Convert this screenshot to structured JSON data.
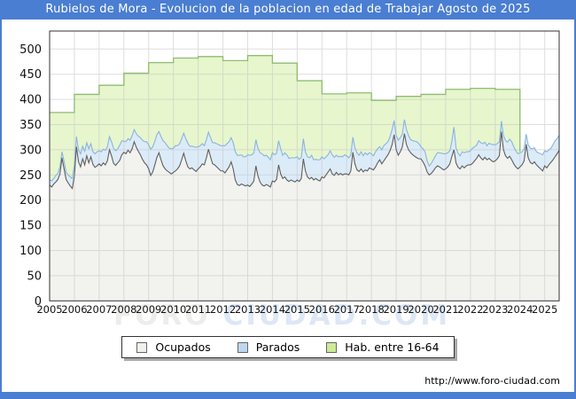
{
  "window": {
    "title": "Rubielos de Mora - Evolucion de la poblacion en edad de Trabajar Agosto de 2025"
  },
  "theme": {
    "accent_blue": "#4a7ed2",
    "grid_color": "#c9c9c9",
    "plot_border": "#333333",
    "tick_text": "#111111"
  },
  "watermark": {
    "part1": "FORO",
    "part2": "CIUDAD.COM"
  },
  "footer": {
    "url": "http://www.foro-ciudad.com"
  },
  "legend": {
    "items": [
      {
        "label": "Ocupados",
        "swatch": "#f0f0ec"
      },
      {
        "label": "Parados",
        "swatch": "#bdd7f0"
      },
      {
        "label": "Hab. entre 16-64",
        "swatch": "#cdeb96"
      }
    ]
  },
  "chart_data": {
    "type": "area",
    "title": "Rubielos de Mora - Evolucion de la poblacion en edad de Trabajar Agosto de 2025",
    "xlabel": "",
    "ylabel": "",
    "x_ticks": [
      "2005",
      "2006",
      "2007",
      "2008",
      "2009",
      "2010",
      "2011",
      "2012",
      "2013",
      "2014",
      "2015",
      "2016",
      "2017",
      "2018",
      "2019",
      "2020",
      "2021",
      "2022",
      "2023",
      "2024",
      "2025"
    ],
    "y_ticks": [
      0,
      50,
      100,
      150,
      200,
      250,
      300,
      350,
      400,
      450,
      500
    ],
    "ylim": [
      0,
      535
    ],
    "grid": true,
    "legend_position": "bottom",
    "x_start": "2005-01",
    "x_end": "2025-08",
    "series": [
      {
        "name": "Hab. entre 16-64",
        "kind": "yearly_step",
        "first_year": 2005,
        "note": "padron values step once per year; series ends at start of 2024",
        "values": [
          374,
          410,
          428,
          452,
          473,
          482,
          485,
          477,
          487,
          472,
          437,
          411,
          413,
          398,
          406,
          410,
          420,
          422,
          420
        ],
        "fill": "#e7f6cd",
        "stroke": "#8fbc72"
      },
      {
        "name": "Parados",
        "kind": "monthly_stacked_on_ocupados",
        "note": "monthly Jan2005-Aug2025; plotted stacked on top of Ocupados",
        "values": [
          10,
          12,
          11,
          13,
          12,
          14,
          12,
          15,
          14,
          16,
          18,
          20,
          22,
          20,
          24,
          26,
          25,
          27,
          26,
          28,
          26,
          25,
          27,
          28,
          26,
          28,
          27,
          29,
          28,
          26,
          28,
          30,
          29,
          28,
          30,
          28,
          22,
          24,
          23,
          25,
          26,
          24,
          27,
          30,
          34,
          38,
          42,
          46,
          48,
          52,
          50,
          47,
          45,
          42,
          46,
          50,
          52,
          50,
          48,
          50,
          48,
          50,
          46,
          44,
          42,
          40,
          44,
          47,
          45,
          43,
          46,
          48,
          44,
          42,
          40,
          38,
          36,
          34,
          38,
          42,
          44,
          46,
          48,
          50,
          50,
          54,
          52,
          50,
          48,
          52,
          56,
          58,
          60,
          58,
          56,
          58,
          60,
          62,
          58,
          56,
          52,
          55,
          58,
          62,
          60,
          58,
          56,
          54,
          56,
          54,
          52,
          48,
          50,
          46,
          48,
          50,
          46,
          44,
          46,
          48,
          46,
          44,
          42,
          40,
          38,
          40,
          42,
          44,
          40,
          38,
          40,
          42,
          40,
          38,
          36,
          34,
          36,
          38,
          36,
          34,
          36,
          34,
          36,
          38,
          36,
          34,
          32,
          30,
          32,
          34,
          32,
          34,
          32,
          34,
          32,
          30,
          30,
          28,
          30,
          28,
          26,
          28,
          30,
          28,
          26,
          28,
          30,
          28,
          28,
          30,
          28,
          26,
          28,
          30,
          28,
          26,
          28,
          30,
          32,
          30,
          24,
          26,
          28,
          22,
          18,
          20,
          22,
          24,
          26,
          28,
          30,
          32,
          30,
          28,
          26,
          30,
          45,
          30,
          28,
          26,
          28,
          30,
          28,
          26,
          28,
          30,
          28,
          26,
          28,
          30,
          32,
          30,
          28,
          30,
          32,
          34,
          32,
          30,
          28,
          21,
          28,
          30,
          32,
          34,
          36,
          34,
          32,
          30,
          28,
          26,
          24,
          20,
          26,
          28,
          30,
          28,
          26,
          28,
          30,
          32,
          30,
          32,
          30,
          28,
          30,
          32,
          30,
          30
        ],
        "fill": "#dcebf8",
        "stroke": "#8ab4dd"
      },
      {
        "name": "Ocupados",
        "kind": "monthly",
        "note": "monthly Jan2005-Aug2025",
        "values": [
          230,
          226,
          232,
          236,
          241,
          252,
          284,
          262,
          241,
          234,
          228,
          223,
          248,
          306,
          276,
          266,
          282,
          270,
          288,
          274,
          286,
          271,
          265,
          268,
          272,
          268,
          274,
          270,
          278,
          300,
          288,
          273,
          269,
          274,
          279,
          290,
          295,
          292,
          299,
          294,
          302,
          316,
          305,
          297,
          290,
          281,
          274,
          270,
          262,
          249,
          256,
          270,
          285,
          294,
          280,
          268,
          262,
          258,
          255,
          252,
          255,
          258,
          262,
          268,
          280,
          293,
          278,
          266,
          262,
          264,
          260,
          257,
          262,
          266,
          272,
          270,
          284,
          301,
          286,
          272,
          270,
          266,
          262,
          258,
          258,
          254,
          260,
          266,
          276,
          262,
          240,
          231,
          229,
          232,
          230,
          228,
          230,
          227,
          232,
          238,
          268,
          248,
          236,
          230,
          228,
          231,
          229,
          226,
          238,
          236,
          241,
          270,
          252,
          243,
          246,
          240,
          237,
          240,
          238,
          236,
          240,
          237,
          243,
          282,
          258,
          246,
          242,
          245,
          240,
          243,
          240,
          238,
          246,
          244,
          250,
          256,
          262,
          252,
          249,
          255,
          250,
          253,
          250,
          252,
          252,
          250,
          258,
          295,
          272,
          260,
          257,
          262,
          256,
          260,
          258,
          264,
          262,
          260,
          266,
          274,
          280,
          272,
          278,
          284,
          290,
          298,
          310,
          330,
          300,
          289,
          296,
          306,
          332,
          310,
          300,
          294,
          290,
          287,
          284,
          282,
          282,
          276,
          268,
          256,
          250,
          253,
          258,
          264,
          268,
          266,
          263,
          260,
          262,
          266,
          272,
          287,
          300,
          274,
          265,
          262,
          268,
          264,
          268,
          270,
          270,
          273,
          278,
          283,
          290,
          284,
          280,
          285,
          280,
          283,
          279,
          276,
          278,
          282,
          288,
          336,
          300,
          288,
          283,
          287,
          280,
          272,
          266,
          262,
          266,
          270,
          278,
          311,
          284,
          275,
          272,
          276,
          270,
          266,
          262,
          258,
          268,
          264,
          270,
          275,
          280,
          286,
          292,
          299
        ],
        "fill": "#f2f2ef",
        "stroke": "#5f5f5f"
      }
    ]
  }
}
